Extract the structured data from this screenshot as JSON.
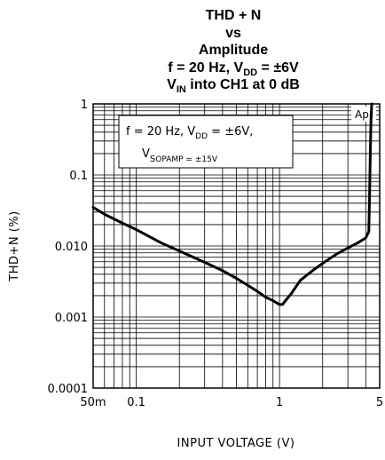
{
  "chart_data": {
    "type": "line",
    "title_lines": [
      "THD + N",
      "vs",
      "Amplitude"
    ],
    "title_line4": {
      "prefix": "f = 20 Hz, V",
      "sub": "DD",
      "suffix": " = ±6V"
    },
    "title_line5": {
      "prefix": "V",
      "sub": "IN",
      "suffix": " into CH1 at 0 dB"
    },
    "xlabel": "INPUT VOLTAGE (V)",
    "ylabel": "THD+N (%)",
    "x_scale": "log",
    "y_scale": "log",
    "xlim": [
      0.05,
      5
    ],
    "ylim": [
      0.0001,
      1
    ],
    "grid": true,
    "x_ticks": [
      {
        "value": 0.05,
        "label": "50m"
      },
      {
        "value": 0.1,
        "label": "0.1"
      },
      {
        "value": 1,
        "label": "1"
      },
      {
        "value": 5,
        "label": "5"
      }
    ],
    "y_ticks": [
      {
        "value": 1,
        "label": "1"
      },
      {
        "value": 0.1,
        "label": "0.1"
      },
      {
        "value": 0.01,
        "label": "0.010"
      },
      {
        "value": 0.001,
        "label": "0.001"
      },
      {
        "value": 0.0001,
        "label": "0.0001"
      }
    ],
    "annotation": {
      "line1_prefix": "f = 20 Hz,  V",
      "line1_sub": "DD",
      "line1_suffix": " = ±6V,",
      "line2_prefix": "V",
      "line2_sub": "S",
      "line2_sub2": "OPAMP",
      "line2_suffix": " = ±15V"
    },
    "watermark": "Ap",
    "series": [
      {
        "x": [
          0.05,
          0.06,
          0.08,
          0.1,
          0.15,
          0.2,
          0.3,
          0.4,
          0.5,
          0.6,
          0.7,
          0.8,
          0.9,
          1.0,
          1.05,
          1.1,
          1.2,
          1.4,
          1.7,
          2.0,
          2.5,
          3.0,
          3.5,
          4.0,
          4.2,
          4.25,
          4.3,
          4.35,
          4.4
        ],
        "y": [
          0.035,
          0.028,
          0.021,
          0.017,
          0.011,
          0.0085,
          0.0059,
          0.0045,
          0.0035,
          0.0028,
          0.0023,
          0.0019,
          0.0017,
          0.0015,
          0.0015,
          0.0017,
          0.0021,
          0.0033,
          0.0045,
          0.0057,
          0.0077,
          0.0094,
          0.011,
          0.013,
          0.016,
          0.05,
          0.2,
          0.6,
          1.0
        ]
      }
    ]
  }
}
